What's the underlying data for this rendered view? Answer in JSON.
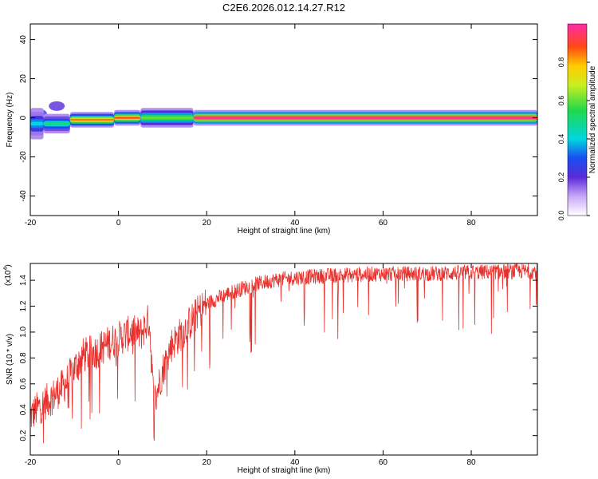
{
  "title": "C2E6.2026.012.14.27.R12",
  "chart_data": [
    {
      "type": "heatmap",
      "xlabel": "Height of straight line (km)",
      "ylabel": "Frequency (Hz)",
      "xlim": [
        -20,
        95
      ],
      "ylim": [
        -50,
        48
      ],
      "xticks": [
        "-20",
        "0",
        "20",
        "40",
        "60",
        "80"
      ],
      "yticks": [
        "40",
        "20",
        "0",
        "-20",
        "-40"
      ],
      "colorbar": {
        "label": "Normalized spectral amplitude",
        "range": [
          0,
          1
        ],
        "ticks": [
          "0.0",
          "0.2",
          "0.4",
          "0.6",
          "0.8"
        ]
      },
      "series": [
        {
          "segments": [
            {
              "x0": -20,
              "x1": -17,
              "y": -3,
              "width": 8,
              "amp": 0.4
            },
            {
              "x0": -17,
              "x1": -11,
              "y": -3,
              "width": 5,
              "amp": 0.5
            },
            {
              "x0": -11,
              "x1": -1,
              "y": -1,
              "width": 4,
              "amp": 0.85
            },
            {
              "x0": -1,
              "x1": 5,
              "y": 0,
              "width": 4,
              "amp": 0.9
            },
            {
              "x0": 5,
              "x1": 17,
              "y": 0,
              "width": 5,
              "amp": 0.6
            },
            {
              "x0": 17,
              "x1": 95,
              "y": 0,
              "width": 4,
              "amp": 1.0
            }
          ],
          "blobs": [
            {
              "x": -18,
              "y": 2,
              "amp": 0.25
            },
            {
              "x": -14,
              "y": 6,
              "amp": 0.2
            },
            {
              "x": -19,
              "y": -7,
              "amp": 0.2
            }
          ]
        }
      ]
    },
    {
      "type": "line",
      "xlabel": "Height of straight line (km)",
      "ylabel": "SNR (10 * v/v)",
      "yscale_note": "(x10",
      "yscale_exp": "4",
      "yscale_close": ")",
      "xlim": [
        -20,
        95
      ],
      "ylim": [
        0.05,
        1.53
      ],
      "xticks": [
        "-20",
        "0",
        "20",
        "40",
        "60",
        "80"
      ],
      "yticks": [
        "0.2",
        "0.4",
        "0.6",
        "0.8",
        "1.0",
        "1.2",
        "1.4"
      ],
      "series": [
        {
          "color": "#e8302c",
          "trend_x": [
            -20,
            -18,
            -15,
            -12,
            -10,
            -8,
            -5,
            -2,
            0,
            3,
            5,
            7,
            8,
            10,
            12,
            15,
            18,
            20,
            25,
            30,
            35,
            40,
            50,
            60,
            70,
            80,
            90,
            95
          ],
          "trend_y": [
            0.35,
            0.42,
            0.5,
            0.6,
            0.72,
            0.82,
            0.85,
            0.92,
            0.95,
            1.0,
            0.98,
            1.1,
            0.45,
            0.7,
            0.9,
            1.02,
            1.15,
            1.22,
            1.3,
            1.36,
            1.4,
            1.42,
            1.44,
            1.45,
            1.45,
            1.46,
            1.47,
            1.47
          ]
        }
      ]
    }
  ]
}
